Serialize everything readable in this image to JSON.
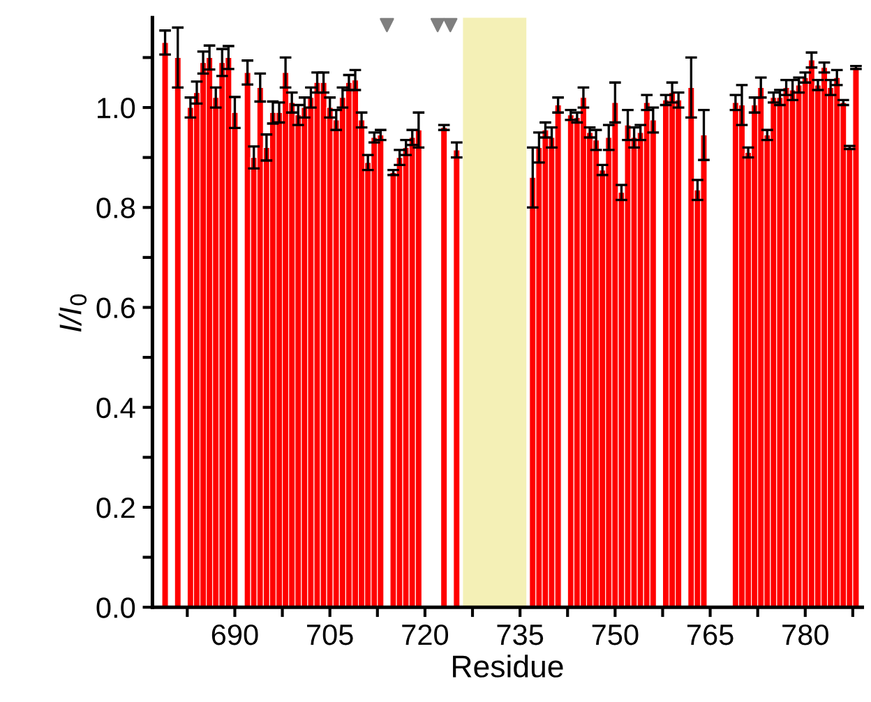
{
  "chart_data": {
    "type": "bar",
    "xlabel": "Residue",
    "ylabel": "I/I$_{0}$",
    "xlim": [
      677,
      789
    ],
    "ylim": [
      0,
      1.18
    ],
    "xticks": [
      {
        "value": 682.5,
        "label": null
      },
      690,
      {
        "value": 697.5,
        "label": null
      },
      705,
      {
        "value": 712.5,
        "label": null
      },
      720,
      {
        "value": 727.5,
        "label": null
      },
      735,
      {
        "value": 742.5,
        "label": null
      },
      750,
      {
        "value": 757.5,
        "label": null
      },
      765,
      {
        "value": 772.5,
        "label": null
      },
      780,
      {
        "value": 787.5,
        "label": null
      }
    ],
    "yticks": [
      {
        "value": 0,
        "label": "0.0"
      },
      {
        "value": 0.1,
        "label": null
      },
      {
        "value": 0.2,
        "label": "0.2"
      },
      {
        "value": 0.3,
        "label": null
      },
      {
        "value": 0.4,
        "label": "0.4"
      },
      {
        "value": 0.5,
        "label": null
      },
      {
        "value": 0.6,
        "label": "0.6"
      },
      {
        "value": 0.7,
        "label": null
      },
      {
        "value": 0.8,
        "label": "0.8"
      },
      {
        "value": 0.9,
        "label": null
      },
      {
        "value": 1.0,
        "label": "1.0"
      },
      {
        "value": 1.1,
        "label": null
      }
    ],
    "grid": false,
    "legend": false,
    "bands": [
      {
        "axis": "x",
        "from": 726,
        "to": 736,
        "color": "#f4f0b6"
      }
    ],
    "series": [
      {
        "color": "#ff0000",
        "x": [
          679,
          681,
          683,
          684,
          685,
          686,
          687,
          688,
          689,
          690,
          692,
          693,
          694,
          695,
          696,
          697,
          698,
          699,
          700,
          701,
          702,
          703,
          704,
          705,
          706,
          707,
          708,
          709,
          710,
          711,
          712,
          713,
          715,
          716,
          717,
          718,
          719,
          723,
          725,
          737,
          738,
          739,
          740,
          741,
          743,
          744,
          745,
          746,
          747,
          748,
          749,
          750,
          751,
          752,
          753,
          754,
          755,
          756,
          758,
          759,
          760,
          762,
          763,
          764,
          769,
          770,
          771,
          772,
          773,
          774,
          775,
          776,
          777,
          778,
          779,
          780,
          781,
          782,
          783,
          784,
          785,
          786,
          787,
          788
        ],
        "values": [
          1.13,
          1.1,
          1.0,
          1.03,
          1.09,
          1.1,
          1.02,
          1.09,
          1.1,
          0.99,
          1.07,
          0.9,
          1.04,
          0.92,
          0.99,
          0.99,
          1.07,
          1.01,
          0.985,
          1.0,
          1.02,
          1.05,
          1.05,
          1.0,
          0.975,
          1.02,
          1.05,
          1.055,
          0.975,
          0.89,
          0.94,
          0.945,
          0.87,
          0.9,
          0.92,
          0.94,
          0.955,
          0.96,
          0.915,
          0.86,
          0.92,
          0.955,
          0.94,
          1.005,
          0.985,
          0.98,
          1.02,
          0.95,
          0.935,
          0.875,
          0.94,
          1.01,
          0.83,
          0.965,
          0.94,
          0.95,
          1.01,
          0.975,
          1.015,
          1.03,
          1.015,
          1.04,
          0.835,
          0.945,
          1.01,
          1.005,
          0.91,
          1.005,
          1.04,
          0.945,
          1.02,
          1.02,
          1.04,
          1.035,
          1.045,
          1.06,
          1.095,
          1.045,
          1.08,
          1.04,
          1.06,
          1.01,
          0.92,
          1.08
        ],
        "errors": [
          0.024,
          0.06,
          0.02,
          0.022,
          0.022,
          0.024,
          0.02,
          0.027,
          0.023,
          0.031,
          0.024,
          0.022,
          0.028,
          0.026,
          0.022,
          0.02,
          0.03,
          0.02,
          0.02,
          0.02,
          0.02,
          0.02,
          0.02,
          0.02,
          0.02,
          0.02,
          0.015,
          0.02,
          0.015,
          0.015,
          0.01,
          0.01,
          0.005,
          0.015,
          0.015,
          0.015,
          0.035,
          0.005,
          0.015,
          0.06,
          0.03,
          0.015,
          0.02,
          0.015,
          0.01,
          0.01,
          0.02,
          0.01,
          0.02,
          0.01,
          0.025,
          0.04,
          0.015,
          0.03,
          0.02,
          0.015,
          0.015,
          0.025,
          0.01,
          0.02,
          0.015,
          0.06,
          0.02,
          0.05,
          0.015,
          0.04,
          0.01,
          0.015,
          0.02,
          0.01,
          0.01,
          0.015,
          0.015,
          0.02,
          0.015,
          0.01,
          0.015,
          0.01,
          0.01,
          0.015,
          0.015,
          0.005,
          0.003,
          0.003
        ]
      },
      {
        "type": "scatter",
        "color": "#7f7f7f",
        "marker": "triangle",
        "x": [
          714,
          722,
          724
        ],
        "values": [
          1.165,
          1.165,
          1.165
        ]
      }
    ]
  }
}
